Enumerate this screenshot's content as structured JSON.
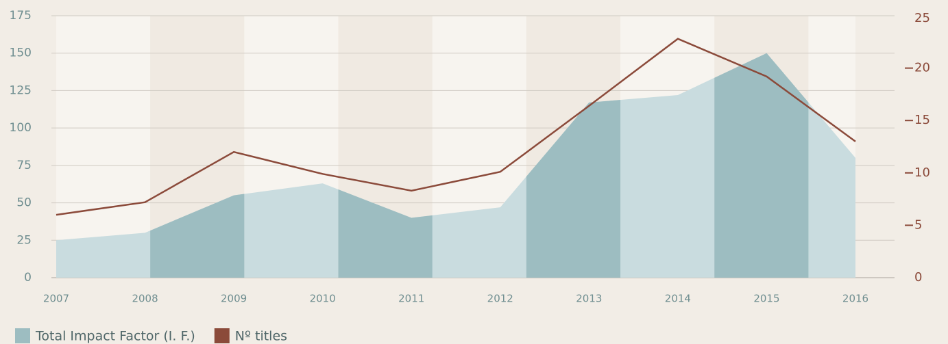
{
  "chart_data": {
    "type": "combo",
    "categories": [
      "2007",
      "2008",
      "2009",
      "2010",
      "2011",
      "2012",
      "2013",
      "2014",
      "2015",
      "2016"
    ],
    "series": [
      {
        "name": "Total Impact Factor (I. F.)",
        "type": "area",
        "color": "#c9dcdf",
        "values": [
          25,
          30,
          55,
          63,
          40,
          47,
          117,
          122,
          150,
          80
        ]
      },
      {
        "name": "Nº titles",
        "type": "line",
        "axis": "y2",
        "color": "#8b4a3a",
        "values": [
          6.0,
          7.2,
          12.0,
          9.9,
          8.3,
          10.1,
          16.4,
          22.8,
          19.2,
          13.0
        ]
      }
    ],
    "ylim": [
      0,
      175
    ],
    "yticks": [
      0,
      25,
      50,
      75,
      100,
      125,
      150,
      175
    ],
    "y2lim": [
      0,
      25
    ],
    "y2ticks": [
      0,
      5,
      10,
      15,
      20,
      25
    ],
    "grid": true
  }
}
